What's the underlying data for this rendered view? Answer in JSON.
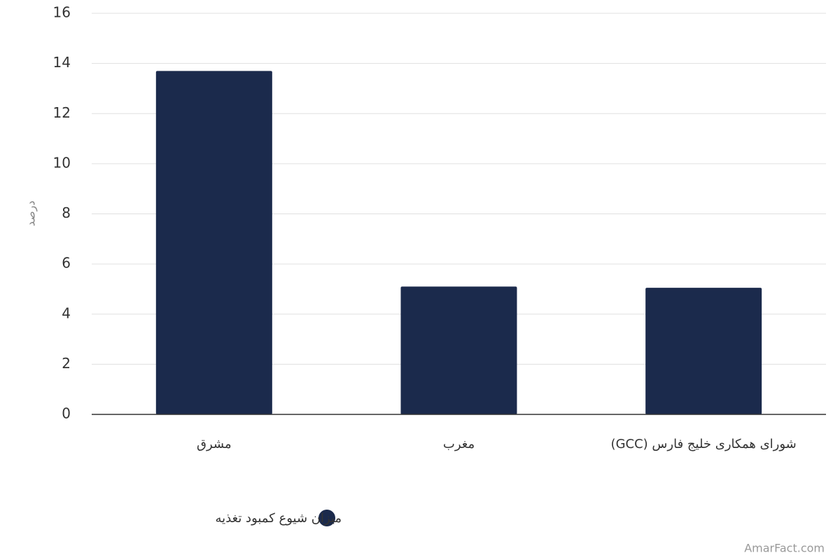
{
  "chart_data": {
    "type": "bar",
    "y_label": "درصد",
    "categories": [
      "مشرق",
      "مغرب",
      "شورای همکاری خلیج فارس (GCC)"
    ],
    "series": [
      {
        "name": "میزان شیوع کمبود تغذیه",
        "color": "#1b2a4c",
        "values": [
          13.7,
          5.1,
          5.05
        ]
      }
    ],
    "ylim": [
      0,
      16
    ],
    "yticks": [
      0,
      2,
      4,
      6,
      8,
      10,
      12,
      14,
      16
    ],
    "grid": true,
    "legend": "bottom",
    "watermark": "AmarFact.com"
  }
}
